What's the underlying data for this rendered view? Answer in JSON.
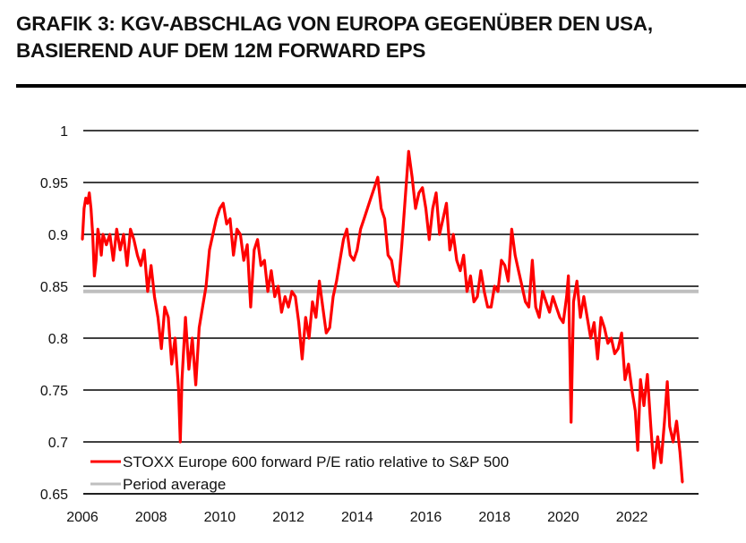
{
  "title": "GRAFIK 3: KGV-ABSCHLAG VON EUROPA GEGENÜBER DEN USA, BASIEREND AUF DEM 12M FORWARD EPS",
  "chart_data": {
    "type": "line",
    "title": "GRAFIK 3: KGV-ABSCHLAG VON EUROPA GEGENÜBER DEN USA, BASIEREND AUF DEM 12M FORWARD EPS",
    "xlabel": "",
    "ylabel": "",
    "xlim": [
      2006,
      2024
    ],
    "ylim": [
      0.65,
      1.0
    ],
    "grid": true,
    "legend_position": "bottom-left",
    "x_ticks": [
      "2006",
      "2008",
      "2010",
      "2012",
      "2014",
      "2016",
      "2018",
      "2020",
      "2022"
    ],
    "x_tick_values": [
      2006,
      2008,
      2010,
      2012,
      2014,
      2016,
      2018,
      2020,
      2022
    ],
    "y_ticks": [
      "1",
      "0.95",
      "0.9",
      "0.85",
      "0.8",
      "0.75",
      "0.7",
      "0.65"
    ],
    "y_tick_values": [
      1.0,
      0.95,
      0.9,
      0.85,
      0.8,
      0.75,
      0.7,
      0.65
    ],
    "series": [
      {
        "name": "STOXX Europe 600 forward P/E ratio relative to S&P 500",
        "color": "#ff0000",
        "x": [
          2006.0,
          2006.05,
          2006.1,
          2006.15,
          2006.2,
          2006.25,
          2006.3,
          2006.35,
          2006.4,
          2006.45,
          2006.5,
          2006.55,
          2006.6,
          2006.7,
          2006.8,
          2006.9,
          2007.0,
          2007.1,
          2007.2,
          2007.3,
          2007.4,
          2007.5,
          2007.6,
          2007.7,
          2007.8,
          2007.9,
          2008.0,
          2008.1,
          2008.2,
          2008.3,
          2008.4,
          2008.5,
          2008.6,
          2008.7,
          2008.8,
          2008.85,
          2008.9,
          2009.0,
          2009.1,
          2009.2,
          2009.3,
          2009.4,
          2009.5,
          2009.6,
          2009.7,
          2009.8,
          2009.9,
          2010.0,
          2010.1,
          2010.2,
          2010.3,
          2010.4,
          2010.5,
          2010.6,
          2010.7,
          2010.8,
          2010.9,
          2011.0,
          2011.1,
          2011.2,
          2011.3,
          2011.4,
          2011.5,
          2011.6,
          2011.7,
          2011.8,
          2011.9,
          2012.0,
          2012.1,
          2012.2,
          2012.3,
          2012.4,
          2012.5,
          2012.6,
          2012.7,
          2012.8,
          2012.9,
          2013.0,
          2013.1,
          2013.2,
          2013.3,
          2013.4,
          2013.5,
          2013.6,
          2013.7,
          2013.8,
          2013.9,
          2014.0,
          2014.1,
          2014.2,
          2014.3,
          2014.4,
          2014.5,
          2014.6,
          2014.7,
          2014.8,
          2014.9,
          2015.0,
          2015.1,
          2015.2,
          2015.3,
          2015.4,
          2015.5,
          2015.6,
          2015.7,
          2015.8,
          2015.9,
          2016.0,
          2016.1,
          2016.2,
          2016.3,
          2016.4,
          2016.5,
          2016.6,
          2016.7,
          2016.8,
          2016.9,
          2017.0,
          2017.1,
          2017.2,
          2017.3,
          2017.4,
          2017.5,
          2017.6,
          2017.7,
          2017.8,
          2017.9,
          2018.0,
          2018.1,
          2018.2,
          2018.3,
          2018.4,
          2018.5,
          2018.6,
          2018.7,
          2018.8,
          2018.9,
          2019.0,
          2019.1,
          2019.2,
          2019.3,
          2019.4,
          2019.5,
          2019.6,
          2019.7,
          2019.8,
          2019.9,
          2020.0,
          2020.1,
          2020.15,
          2020.19,
          2020.23,
          2020.3,
          2020.4,
          2020.5,
          2020.6,
          2020.7,
          2020.8,
          2020.9,
          2021.0,
          2021.1,
          2021.2,
          2021.3,
          2021.4,
          2021.5,
          2021.6,
          2021.7,
          2021.8,
          2021.9,
          2022.0,
          2022.1,
          2022.17,
          2022.25,
          2022.35,
          2022.45,
          2022.55,
          2022.64,
          2022.75,
          2022.85,
          2022.95,
          2023.03,
          2023.1,
          2023.2,
          2023.3,
          2023.4,
          2023.47
        ],
        "values": [
          0.895,
          0.925,
          0.935,
          0.93,
          0.94,
          0.925,
          0.9,
          0.86,
          0.875,
          0.905,
          0.895,
          0.88,
          0.9,
          0.89,
          0.9,
          0.875,
          0.905,
          0.885,
          0.9,
          0.87,
          0.905,
          0.895,
          0.88,
          0.87,
          0.885,
          0.845,
          0.87,
          0.84,
          0.82,
          0.79,
          0.83,
          0.82,
          0.775,
          0.8,
          0.75,
          0.7,
          0.76,
          0.82,
          0.77,
          0.8,
          0.755,
          0.81,
          0.83,
          0.85,
          0.885,
          0.9,
          0.915,
          0.925,
          0.93,
          0.91,
          0.915,
          0.88,
          0.905,
          0.9,
          0.875,
          0.89,
          0.83,
          0.885,
          0.895,
          0.87,
          0.875,
          0.845,
          0.865,
          0.84,
          0.85,
          0.825,
          0.84,
          0.83,
          0.845,
          0.84,
          0.815,
          0.78,
          0.82,
          0.8,
          0.835,
          0.82,
          0.855,
          0.83,
          0.805,
          0.81,
          0.84,
          0.855,
          0.875,
          0.895,
          0.905,
          0.88,
          0.875,
          0.885,
          0.905,
          0.915,
          0.925,
          0.935,
          0.945,
          0.955,
          0.925,
          0.915,
          0.88,
          0.875,
          0.855,
          0.85,
          0.89,
          0.935,
          0.98,
          0.955,
          0.925,
          0.94,
          0.945,
          0.925,
          0.895,
          0.925,
          0.94,
          0.9,
          0.915,
          0.93,
          0.885,
          0.9,
          0.875,
          0.865,
          0.88,
          0.845,
          0.86,
          0.835,
          0.84,
          0.865,
          0.845,
          0.83,
          0.83,
          0.85,
          0.845,
          0.875,
          0.87,
          0.855,
          0.905,
          0.88,
          0.865,
          0.85,
          0.835,
          0.83,
          0.875,
          0.83,
          0.82,
          0.845,
          0.835,
          0.825,
          0.84,
          0.83,
          0.82,
          0.815,
          0.84,
          0.86,
          0.79,
          0.719,
          0.835,
          0.855,
          0.82,
          0.84,
          0.82,
          0.8,
          0.815,
          0.78,
          0.82,
          0.81,
          0.795,
          0.8,
          0.785,
          0.79,
          0.805,
          0.76,
          0.775,
          0.75,
          0.73,
          0.692,
          0.76,
          0.735,
          0.765,
          0.715,
          0.675,
          0.705,
          0.68,
          0.72,
          0.758,
          0.715,
          0.7,
          0.72,
          0.69,
          0.661
        ]
      },
      {
        "name": "Period average",
        "color": "#bfbfbf",
        "x": [
          2006.0,
          2024.0
        ],
        "values": [
          0.845,
          0.845
        ]
      }
    ]
  }
}
